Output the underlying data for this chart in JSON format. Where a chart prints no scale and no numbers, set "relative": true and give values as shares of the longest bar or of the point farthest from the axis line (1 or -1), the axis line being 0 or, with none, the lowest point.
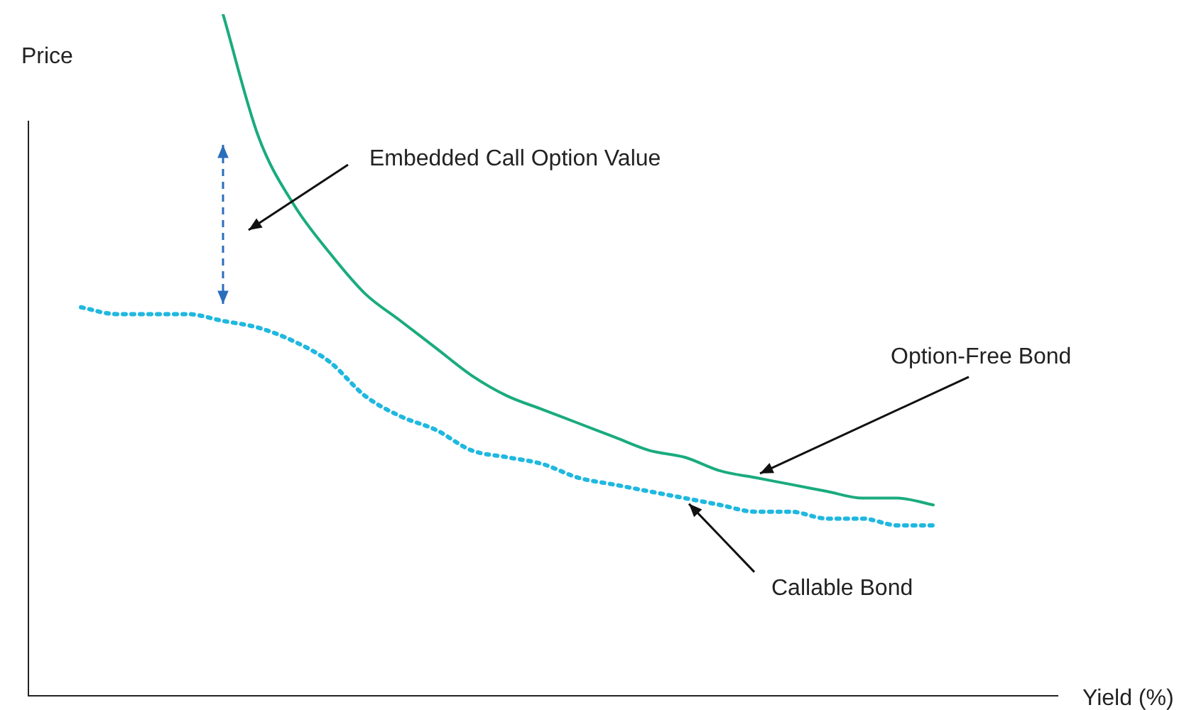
{
  "chart_data": {
    "type": "line",
    "relative": true,
    "ylabel": "Price",
    "categories": [
      null,
      null,
      null,
      null,
      null,
      null,
      null,
      null,
      null,
      null,
      null,
      null,
      null,
      null,
      null,
      null,
      null,
      null,
      null,
      null,
      null,
      null,
      null,
      null,
      null
    ],
    "series": [
      {
        "name": "Option-Free Bond",
        "color": "#1aab7e",
        "line_style": "solid",
        "values": [
          null,
          null,
          null,
          null,
          1.0,
          0.82,
          0.72,
          0.65,
          0.59,
          0.55,
          0.51,
          0.47,
          0.44,
          0.42,
          0.4,
          0.38,
          0.36,
          0.35,
          0.33,
          0.32,
          0.31,
          0.3,
          0.29,
          0.29,
          0.28
        ]
      },
      {
        "name": "Callable Bond",
        "color": "#1fb8e0",
        "line_style": "dotted",
        "values": [
          0.57,
          0.56,
          0.56,
          0.56,
          0.55,
          0.54,
          0.52,
          0.49,
          0.44,
          0.41,
          0.39,
          0.36,
          0.35,
          0.34,
          0.32,
          0.31,
          0.3,
          0.29,
          0.28,
          0.27,
          0.27,
          0.26,
          0.26,
          0.25,
          0.25
        ]
      }
    ],
    "annotations": [
      "Embedded Call Option Value",
      "Yield (%)"
    ],
    "grid": false,
    "legend": false,
    "marker": "none"
  }
}
